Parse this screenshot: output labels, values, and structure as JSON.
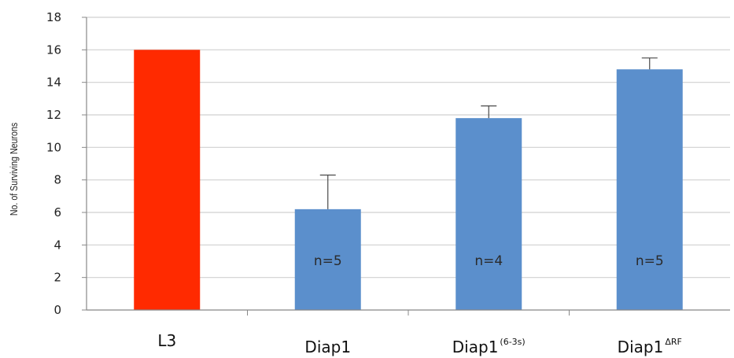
{
  "chart_data": {
    "type": "bar",
    "title": "",
    "xlabel": "",
    "ylabel": "No. of Surviving Neurons",
    "ylim": [
      0,
      18
    ],
    "yticks": [
      0,
      2,
      4,
      6,
      8,
      10,
      12,
      14,
      16,
      18
    ],
    "grid": true,
    "legend": "none",
    "bars": [
      {
        "category": "L3",
        "superscript": "",
        "value": 16,
        "error": 0,
        "color": "#ff2a00",
        "n_label": ""
      },
      {
        "category": "Diap1",
        "superscript": "",
        "value": 6.2,
        "error": 2.1,
        "color": "#5b8fcc",
        "n_label": "n=5"
      },
      {
        "category": "Diap1",
        "superscript": "(6-3s)",
        "value": 11.8,
        "error": 0.75,
        "color": "#5b8fcc",
        "n_label": "n=4"
      },
      {
        "category": "Diap1",
        "superscript": "ΔRF",
        "value": 14.8,
        "error": 0.7,
        "color": "#5b8fcc",
        "n_label": "n=5"
      }
    ]
  }
}
